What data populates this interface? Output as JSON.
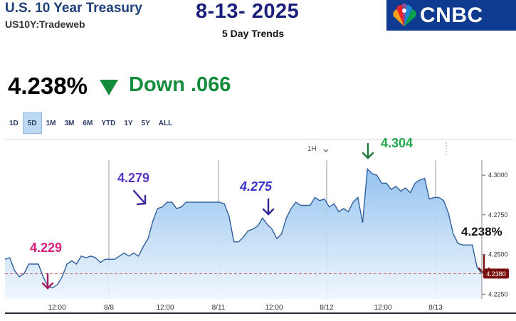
{
  "header": {
    "title": "U.S. 10 Year Treasury",
    "subtitle": "US10Y:Tradeweb",
    "date": "8-13- 2025",
    "trend_label": "5 Day Trends",
    "brand": "CNBC"
  },
  "quote": {
    "price": "4.238%",
    "change": "Down .066",
    "direction": "down",
    "change_color": "#148c3c"
  },
  "ranges": {
    "items": [
      "1D",
      "5D",
      "1M",
      "3M",
      "6M",
      "YTD",
      "1Y",
      "5Y",
      "ALL"
    ],
    "active": "5D"
  },
  "interval": {
    "label": "1H"
  },
  "chart_data": {
    "type": "area",
    "x_tick_labels": [
      "12:00",
      "8/8",
      "12:00",
      "8/11",
      "12:00",
      "8/12",
      "12:00",
      "8/13"
    ],
    "y_tick_labels": [
      "4.3000",
      "4.2750",
      "4.2500",
      "4.2250"
    ],
    "ylim": [
      4.222,
      4.3095
    ],
    "current_value_label": "4.2380",
    "current_value": 4.238,
    "series": [
      {
        "values": [
          4.247,
          4.248,
          4.24,
          4.236,
          4.238,
          4.244,
          4.244,
          4.244,
          4.236,
          4.23,
          4.229,
          4.231,
          4.236,
          4.244,
          4.246,
          4.244,
          4.249,
          4.248,
          4.249,
          4.248,
          4.245,
          4.247,
          4.247,
          4.247,
          4.249,
          4.251,
          4.249,
          4.251,
          4.249,
          4.255,
          4.26,
          4.271,
          4.279,
          4.28,
          4.283,
          4.283,
          4.279,
          4.28,
          4.283,
          4.283,
          4.283,
          4.283,
          4.283,
          4.283,
          4.283,
          4.283,
          4.282,
          4.274,
          4.258,
          4.258,
          4.261,
          4.265,
          4.266,
          4.268,
          4.273,
          4.269,
          4.266,
          4.26,
          4.263,
          4.273,
          4.279,
          4.283,
          4.281,
          4.281,
          4.281,
          4.286,
          4.284,
          4.285,
          4.28,
          4.282,
          4.277,
          4.279,
          4.277,
          4.283,
          4.286,
          4.27,
          4.304,
          4.301,
          4.3,
          4.295,
          4.295,
          4.291,
          4.293,
          4.29,
          4.292,
          4.289,
          4.295,
          4.297,
          4.298,
          4.285,
          4.286,
          4.286,
          4.284,
          4.276,
          4.263,
          4.257,
          4.256,
          4.256,
          4.256,
          4.242,
          4.238
        ]
      }
    ],
    "annotations": [
      {
        "text": "4.229",
        "color": "#d6207f",
        "arrow_color": "#a5185f"
      },
      {
        "text": "4.279",
        "color": "#5a35c9",
        "arrow_color": "#40239b"
      },
      {
        "text": "4.275",
        "color": "#3a35c9",
        "arrow_color": "#2b2596"
      },
      {
        "text": "4.304",
        "color": "#22a84d",
        "arrow_color": "#1b7a3a"
      },
      {
        "text": "4.238%",
        "color": "#111111",
        "arrow_color": "#7a1111"
      }
    ],
    "line_color": "#2f5f9e",
    "fill_color": "#9cc6ef",
    "grid": true
  }
}
